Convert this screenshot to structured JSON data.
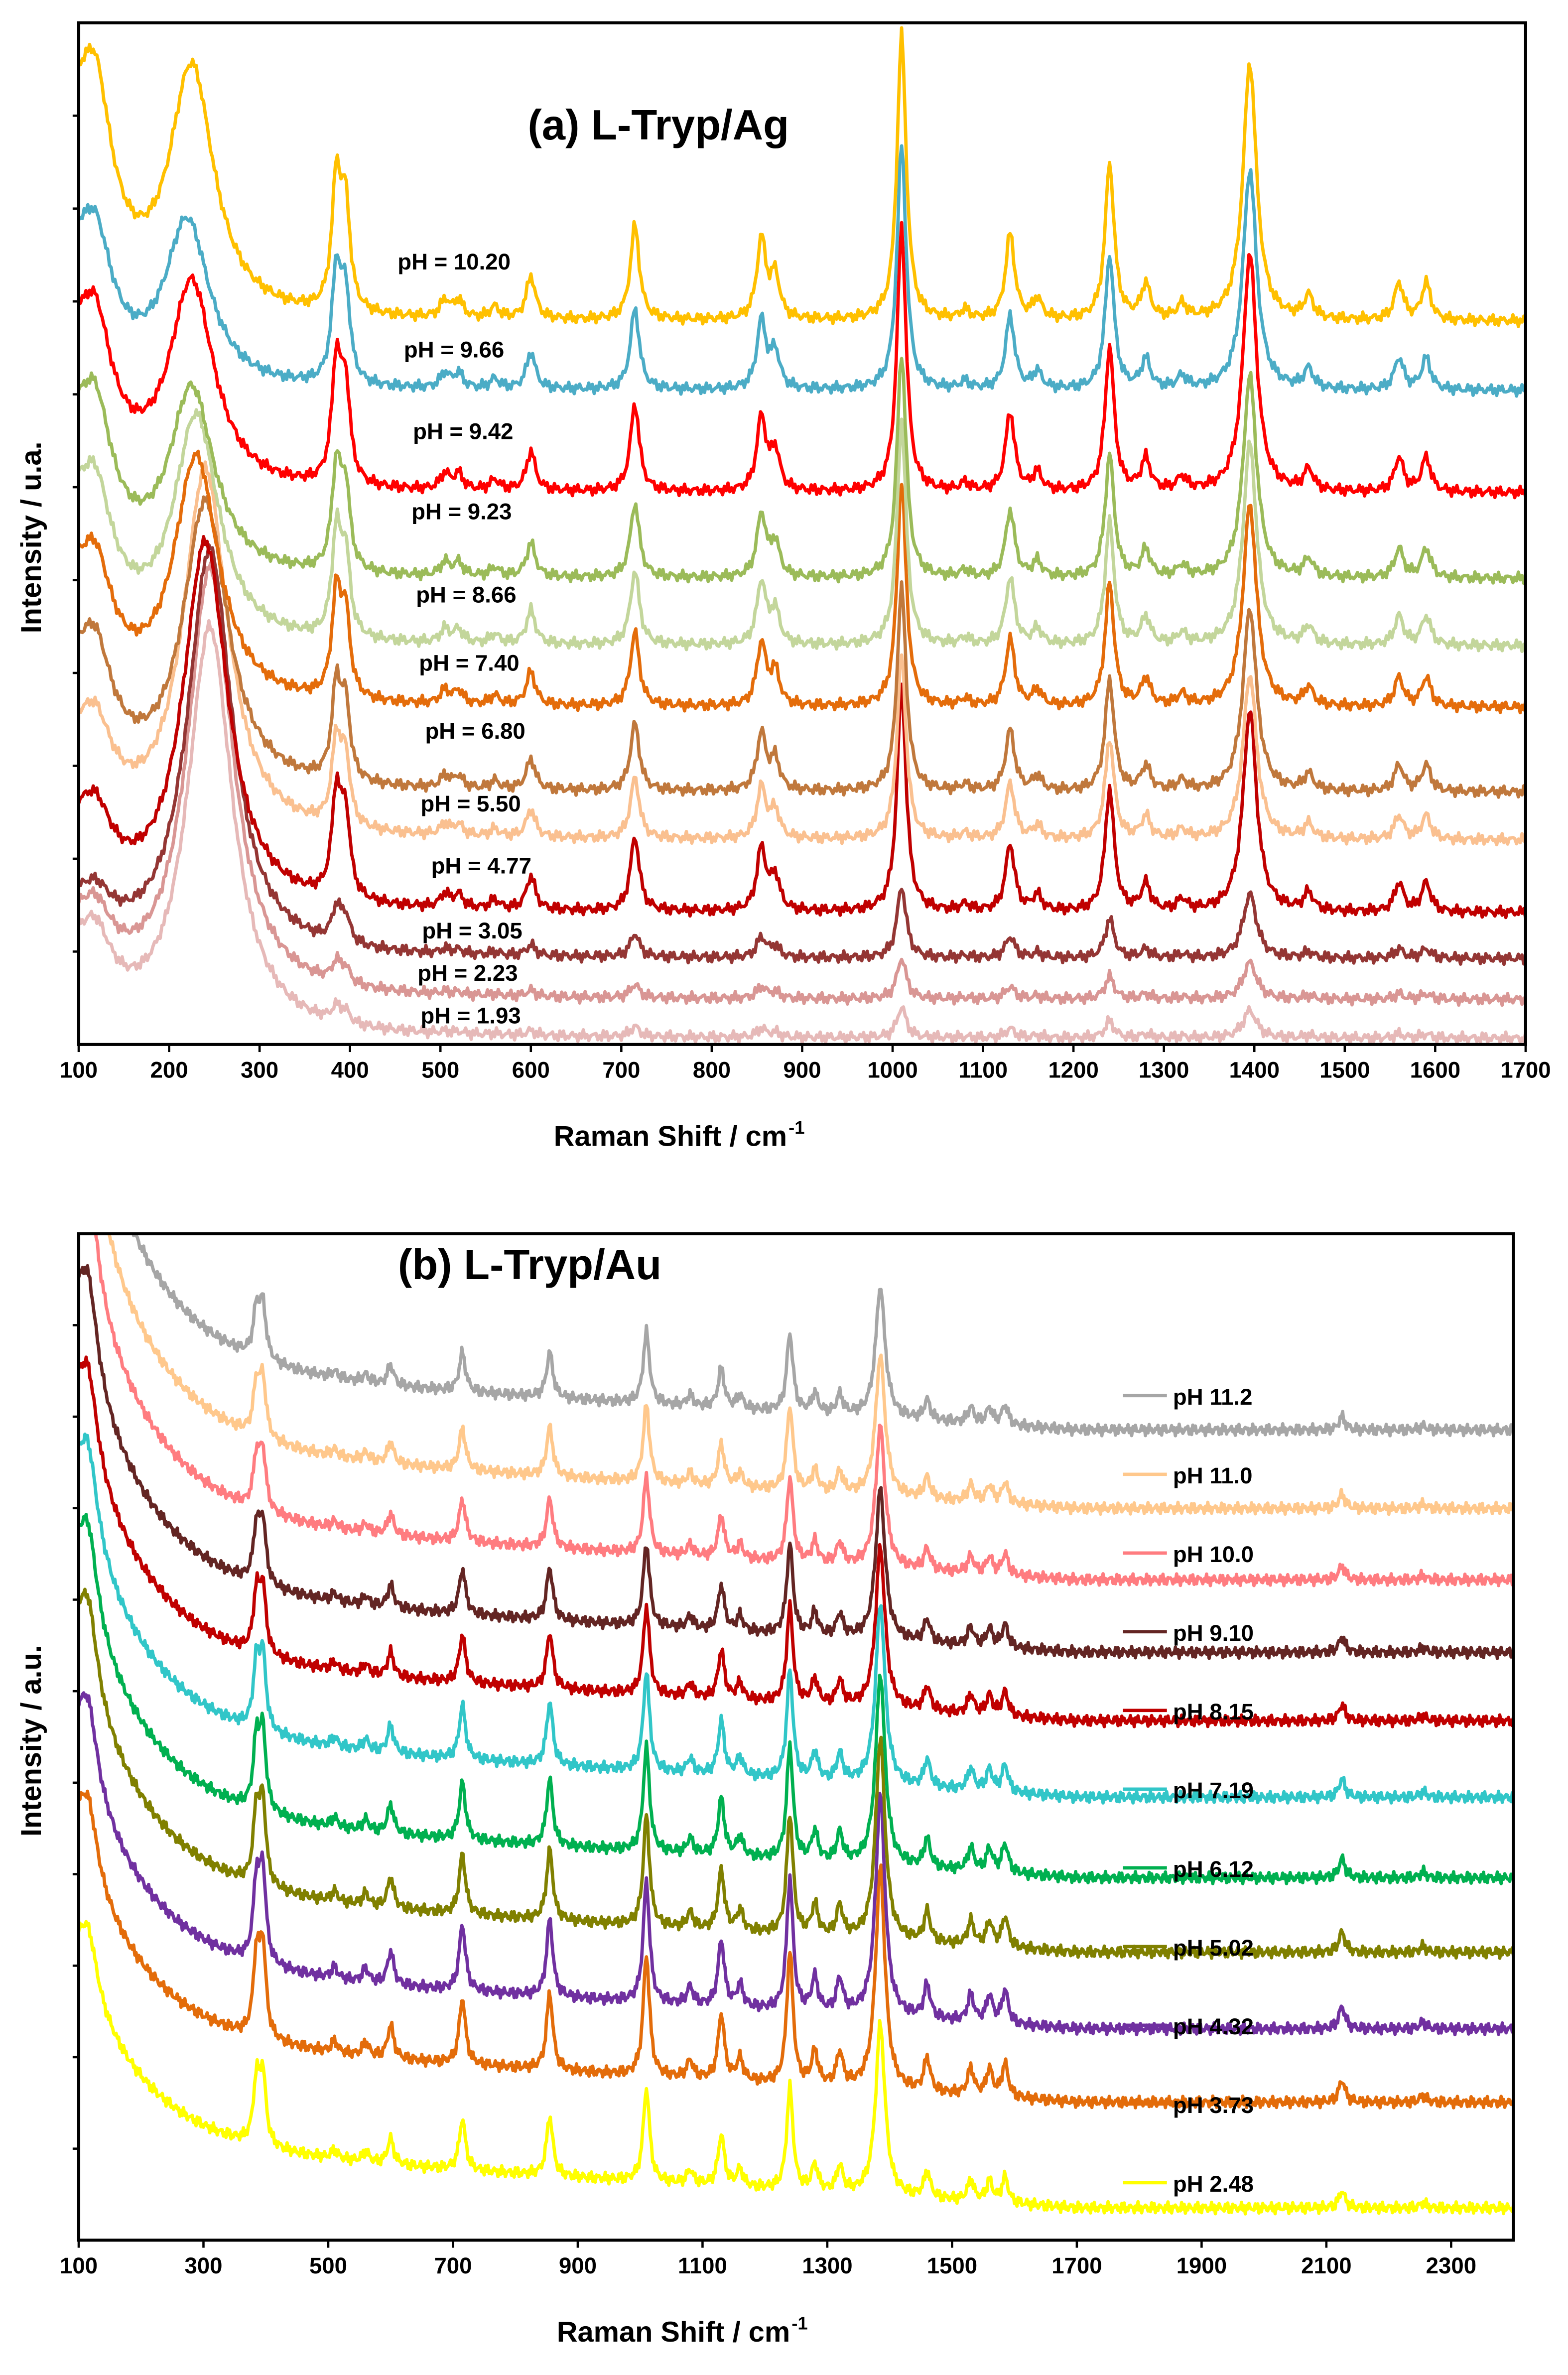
{
  "chart_data": [
    {
      "type": "line",
      "title": "(a) L-Tryp/Ag",
      "xlabel_main": "Raman Shift / cm",
      "xlabel_sup": "-1",
      "ylabel": "Intensity / u.a.",
      "xlim": [
        100,
        1700
      ],
      "xticks": [
        100,
        200,
        300,
        400,
        500,
        600,
        700,
        800,
        900,
        1000,
        1100,
        1200,
        1300,
        1400,
        1500,
        1600,
        1700
      ],
      "ylim": [
        0,
        100
      ],
      "y_tick_labels": "none",
      "grid": false,
      "legend": "inline labels",
      "peak_template": [
        [
          120,
          0
        ],
        [
          385,
          0.45
        ],
        [
          395,
          0.35
        ],
        [
          505,
          0.06
        ],
        [
          520,
          0.06
        ],
        [
          560,
          0.04
        ],
        [
          600,
          0.15
        ],
        [
          715,
          0.33
        ],
        [
          855,
          0.28
        ],
        [
          870,
          0.15
        ],
        [
          1010,
          1.0
        ],
        [
          1080,
          0.03
        ],
        [
          1130,
          0.3
        ],
        [
          1160,
          0.07
        ],
        [
          1240,
          0.55
        ],
        [
          1280,
          0.12
        ],
        [
          1320,
          0.05
        ],
        [
          1395,
          0.9
        ],
        [
          1460,
          0.08
        ],
        [
          1560,
          0.13
        ],
        [
          1590,
          0.13
        ]
      ],
      "series": [
        {
          "name": "pH = 10.20",
          "color": "#FFC000",
          "offset": 70.8,
          "scale": 28,
          "low_amp": 30,
          "hump_pos": 225,
          "hump_amp": 24
        },
        {
          "name": "pH = 9.66",
          "color": "#4BACC6",
          "offset": 64,
          "scale": 24,
          "low_amp": 20,
          "hump_pos": 220,
          "hump_amp": 16
        },
        {
          "name": "pH = 9.42",
          "color": "#FF0000",
          "offset": 54,
          "scale": 26,
          "low_amp": 22,
          "hump_pos": 225,
          "hump_amp": 20
        },
        {
          "name": "pH = 9.23",
          "color": "#9BBB59",
          "offset": 45.6,
          "scale": 22,
          "low_amp": 22,
          "hump_pos": 225,
          "hump_amp": 18
        },
        {
          "name": "pH = 8.66",
          "color": "#C3D69B",
          "offset": 39,
          "scale": 22,
          "low_amp": 20,
          "hump_pos": 230,
          "hump_amp": 22
        },
        {
          "name": "pH = 7.40",
          "color": "#E46C0A",
          "offset": 33,
          "scale": 22,
          "low_amp": 18,
          "hump_pos": 230,
          "hump_amp": 24
        },
        {
          "name": "pH = 6.80",
          "color": "#C0783C",
          "offset": 24.7,
          "scale": 20,
          "low_amp": 18,
          "hump_pos": 240,
          "hump_amp": 28
        },
        {
          "name": "pH = 5.50",
          "color": "#FAC090",
          "offset": 20,
          "scale": 18,
          "low_amp": 14,
          "hump_pos": 240,
          "hump_amp": 36
        },
        {
          "name": "pH = 4.77",
          "color": "#C00000",
          "offset": 12.9,
          "scale": 22,
          "low_amp": 12,
          "hump_pos": 240,
          "hump_amp": 36
        },
        {
          "name": "pH = 3.05",
          "color": "#943634",
          "offset": 8.4,
          "scale": 7,
          "low_amp": 7,
          "hump_pos": 245,
          "hump_amp": 40
        },
        {
          "name": "pH = 2.23",
          "color": "#D99694",
          "offset": 4.4,
          "scale": 4,
          "low_amp": 10,
          "hump_pos": 245,
          "hump_amp": 42
        },
        {
          "name": "pH = 1.93",
          "color": "#E6B9B8",
          "offset": 0.6,
          "scale": 3,
          "low_amp": 12,
          "hump_pos": 245,
          "hump_amp": 40
        }
      ]
    },
    {
      "type": "line",
      "title": "(b) L-Tryp/Au",
      "xlabel_main": "Raman Shift / cm",
      "xlabel_sup": "-1",
      "ylabel": "Intensity / a.u.",
      "xlim": [
        100,
        2400
      ],
      "xticks": [
        100,
        300,
        500,
        700,
        900,
        1100,
        1300,
        1500,
        1700,
        1900,
        2100,
        2300
      ],
      "ylim": [
        0,
        100
      ],
      "y_tick_labels": "none",
      "grid": false,
      "legend": "right",
      "peak_template": [
        [
          385,
          0.35
        ],
        [
          395,
          0.4
        ],
        [
          510,
          0.05
        ],
        [
          560,
          0.06
        ],
        [
          600,
          0.15
        ],
        [
          715,
          0.3
        ],
        [
          855,
          0.35
        ],
        [
          1010,
          0.55
        ],
        [
          1080,
          0.08
        ],
        [
          1130,
          0.3
        ],
        [
          1160,
          0.1
        ],
        [
          1240,
          0.6
        ],
        [
          1280,
          0.15
        ],
        [
          1320,
          0.15
        ],
        [
          1385,
          1.0
        ],
        [
          1460,
          0.15
        ],
        [
          1530,
          0.12
        ],
        [
          1560,
          0.12
        ],
        [
          1585,
          0.15
        ],
        [
          2125,
          0.1
        ],
        [
          2255,
          0.03
        ]
      ],
      "series": [
        {
          "name": "pH 11.2",
          "color": "#A6A6A6",
          "offset": 78.5,
          "scale": 13,
          "low_amp": 30
        },
        {
          "name": "pH 11.0",
          "color": "#FFC88C",
          "offset": 70.7,
          "scale": 14,
          "low_amp": 30
        },
        {
          "name": "pH 10.0",
          "color": "#FF7C80",
          "offset": 63.6,
          "scale": 14,
          "low_amp": 28
        },
        {
          "name": "pH 9.10",
          "color": "#632523",
          "offset": 56.4,
          "scale": 15,
          "low_amp": 26
        },
        {
          "name": "pH 8.15",
          "color": "#C00000",
          "offset": 49.6,
          "scale": 16,
          "low_amp": 24
        },
        {
          "name": "pH 7.19",
          "color": "#31C6C8",
          "offset": 42,
          "scale": 18,
          "low_amp": 24
        },
        {
          "name": "pH 6.12",
          "color": "#00B050",
          "offset": 34,
          "scale": 19,
          "low_amp": 24
        },
        {
          "name": "pH 5.02",
          "color": "#808000",
          "offset": 26.6,
          "scale": 20,
          "low_amp": 24
        },
        {
          "name": "pH 4.32",
          "color": "#7030A0",
          "offset": 19,
          "scale": 22,
          "low_amp": 22
        },
        {
          "name": "pH 3.73",
          "color": "#E36C0A",
          "offset": 11.7,
          "scale": 22,
          "low_amp": 20
        },
        {
          "name": "pH 2.48",
          "color": "#FFFF00",
          "offset": 1.2,
          "scale": 17,
          "low_amp": 18
        }
      ]
    }
  ]
}
